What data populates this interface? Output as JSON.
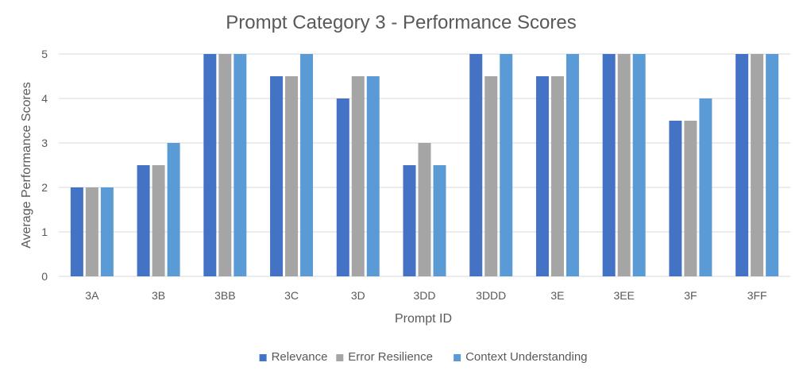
{
  "chart_data": {
    "type": "bar",
    "title": "Prompt Category 3 - Performance Scores",
    "xlabel": "Prompt ID",
    "ylabel": "Average Performance Scores",
    "categories": [
      "3A",
      "3B",
      "3BB",
      "3C",
      "3D",
      "3DD",
      "3DDD",
      "3E",
      "3EE",
      "3F",
      "3FF"
    ],
    "ylim": [
      0,
      5
    ],
    "yticks": [
      0,
      1,
      2,
      3,
      4,
      5
    ],
    "grid": true,
    "legend_position": "bottom",
    "series": [
      {
        "name": "Relevance",
        "color": "#4472C4",
        "values": [
          2,
          2.5,
          5,
          4.5,
          4,
          2.5,
          5,
          4.5,
          5,
          3.5,
          5
        ]
      },
      {
        "name": "Error Resilience",
        "color": "#A5A5A5",
        "values": [
          2,
          2.5,
          5,
          4.5,
          4.5,
          3,
          4.5,
          4.5,
          5,
          3.5,
          5
        ]
      },
      {
        "name": "Context Understanding",
        "color": "#5B9BD5",
        "values": [
          2,
          3,
          5,
          5,
          4.5,
          2.5,
          5,
          5,
          5,
          4,
          5
        ]
      }
    ]
  }
}
